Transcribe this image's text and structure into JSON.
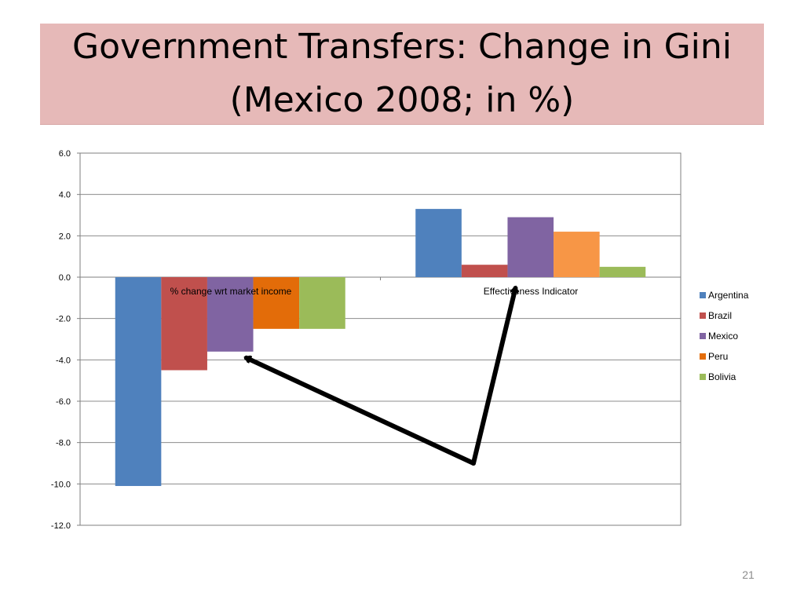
{
  "slide": {
    "title": "Government Transfers: Change in Gini (Mexico 2008; in %)",
    "page_number": "21"
  },
  "colors": {
    "title_background": "#e6b9b8",
    "Argentina": "#4f81bd",
    "Brazil": "#c0504d",
    "Mexico": "#8064a2",
    "Peru": "#e36c09",
    "Peru_positive": "#f79646",
    "Bolivia": "#9bbb59",
    "arrow": "#000000"
  },
  "chart_data": {
    "type": "bar",
    "title": "",
    "xlabel": "",
    "ylabel": "",
    "categories": [
      "% change wrt market income",
      "Effectiveness Indicator"
    ],
    "series": [
      {
        "name": "Argentina",
        "values": [
          -10.1,
          3.3
        ]
      },
      {
        "name": "Brazil",
        "values": [
          -4.5,
          0.6
        ]
      },
      {
        "name": "Mexico",
        "values": [
          -3.6,
          2.9
        ]
      },
      {
        "name": "Peru",
        "values": [
          -2.5,
          2.2
        ]
      },
      {
        "name": "Bolivia",
        "values": [
          -2.5,
          0.5
        ]
      }
    ],
    "ylim": [
      -12.0,
      6.0
    ],
    "yticks": [
      "6.0",
      "4.0",
      "2.0",
      "0.0",
      "-2.0",
      "-4.0",
      "-6.0",
      "-8.0",
      "-10.0",
      "-12.0"
    ],
    "grid": true,
    "legend_position": "right",
    "annotations": [
      {
        "type": "arrow",
        "points_to": "Mexico bar, % change wrt market income"
      },
      {
        "type": "arrow",
        "points_to": "Mexico bar, Effectiveness Indicator"
      }
    ]
  }
}
